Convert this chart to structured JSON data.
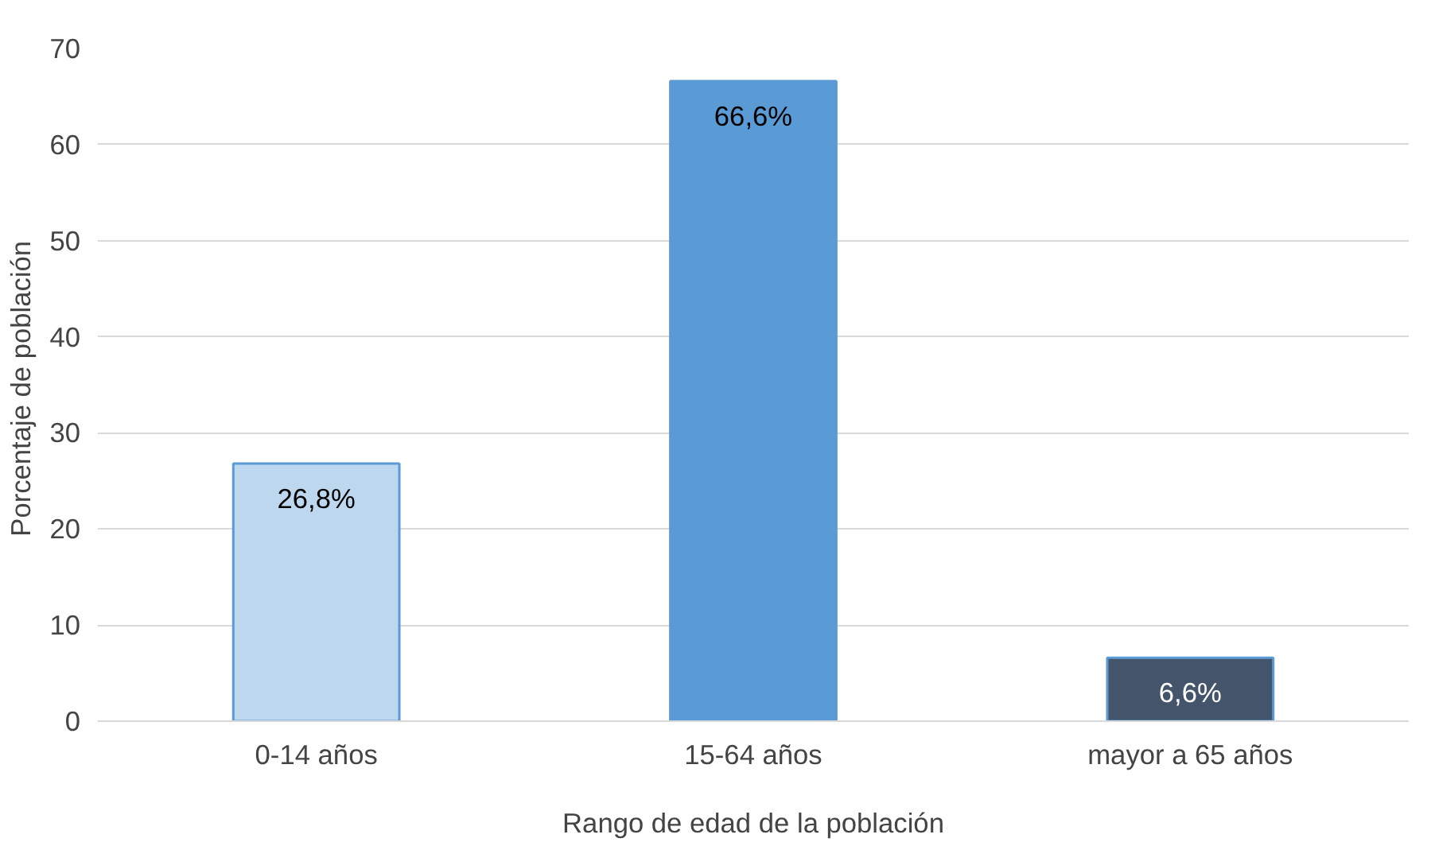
{
  "chart_data": {
    "type": "bar",
    "xlabel": "Rango de edad de la población",
    "ylabel": "Porcentaje de  población",
    "categories": [
      "0-14 años",
      "15-64 años",
      "mayor a 65 años"
    ],
    "values": [
      26.8,
      66.6,
      6.6
    ],
    "colors": [
      "#bdd7ee",
      "#5b9bd5",
      "#44546a"
    ],
    "value_labels": [
      "26,8%",
      "66,6%",
      "6,6%"
    ],
    "ylim": [
      0,
      70
    ],
    "yticks": [
      0,
      10,
      20,
      30,
      40,
      50,
      60,
      70
    ],
    "grid": "y"
  }
}
